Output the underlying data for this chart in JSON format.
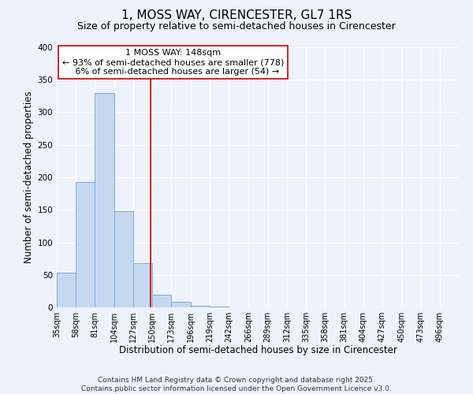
{
  "title": "1, MOSS WAY, CIRENCESTER, GL7 1RS",
  "subtitle": "Size of property relative to semi-detached houses in Cirencester",
  "xlabel": "Distribution of semi-detached houses by size in Cirencester",
  "ylabel": "Number of semi-detached properties",
  "bin_labels": [
    "35sqm",
    "58sqm",
    "81sqm",
    "104sqm",
    "127sqm",
    "150sqm",
    "173sqm",
    "196sqm",
    "219sqm",
    "242sqm",
    "266sqm",
    "289sqm",
    "312sqm",
    "335sqm",
    "358sqm",
    "381sqm",
    "404sqm",
    "427sqm",
    "450sqm",
    "473sqm",
    "496sqm"
  ],
  "bin_edges": [
    35,
    58,
    81,
    104,
    127,
    150,
    173,
    196,
    219,
    242,
    266,
    289,
    312,
    335,
    358,
    381,
    404,
    427,
    450,
    473,
    496
  ],
  "bar_heights": [
    53,
    193,
    330,
    148,
    68,
    20,
    8,
    2,
    1,
    0,
    0,
    0,
    0,
    0,
    0,
    0,
    0,
    0,
    0,
    0
  ],
  "bar_color": "#c5d8f0",
  "bar_edge_color": "#7aaadc",
  "property_size": 148,
  "vline_color": "#cc0000",
  "annotation_line1": "1 MOSS WAY: 148sqm",
  "annotation_line2": "← 93% of semi-detached houses are smaller (778)",
  "annotation_line3": "   6% of semi-detached houses are larger (54) →",
  "annotation_box_color": "#ffffff",
  "annotation_box_edge": "#cc0000",
  "ylim": [
    0,
    400
  ],
  "yticks": [
    0,
    50,
    100,
    150,
    200,
    250,
    300,
    350,
    400
  ],
  "footer_line1": "Contains HM Land Registry data © Crown copyright and database right 2025.",
  "footer_line2": "Contains public sector information licensed under the Open Government Licence v3.0.",
  "background_color": "#eef2fb",
  "grid_color": "#ffffff",
  "title_fontsize": 11,
  "subtitle_fontsize": 9,
  "axis_label_fontsize": 8.5,
  "tick_fontsize": 7,
  "annotation_fontsize": 8,
  "footer_fontsize": 6.5
}
